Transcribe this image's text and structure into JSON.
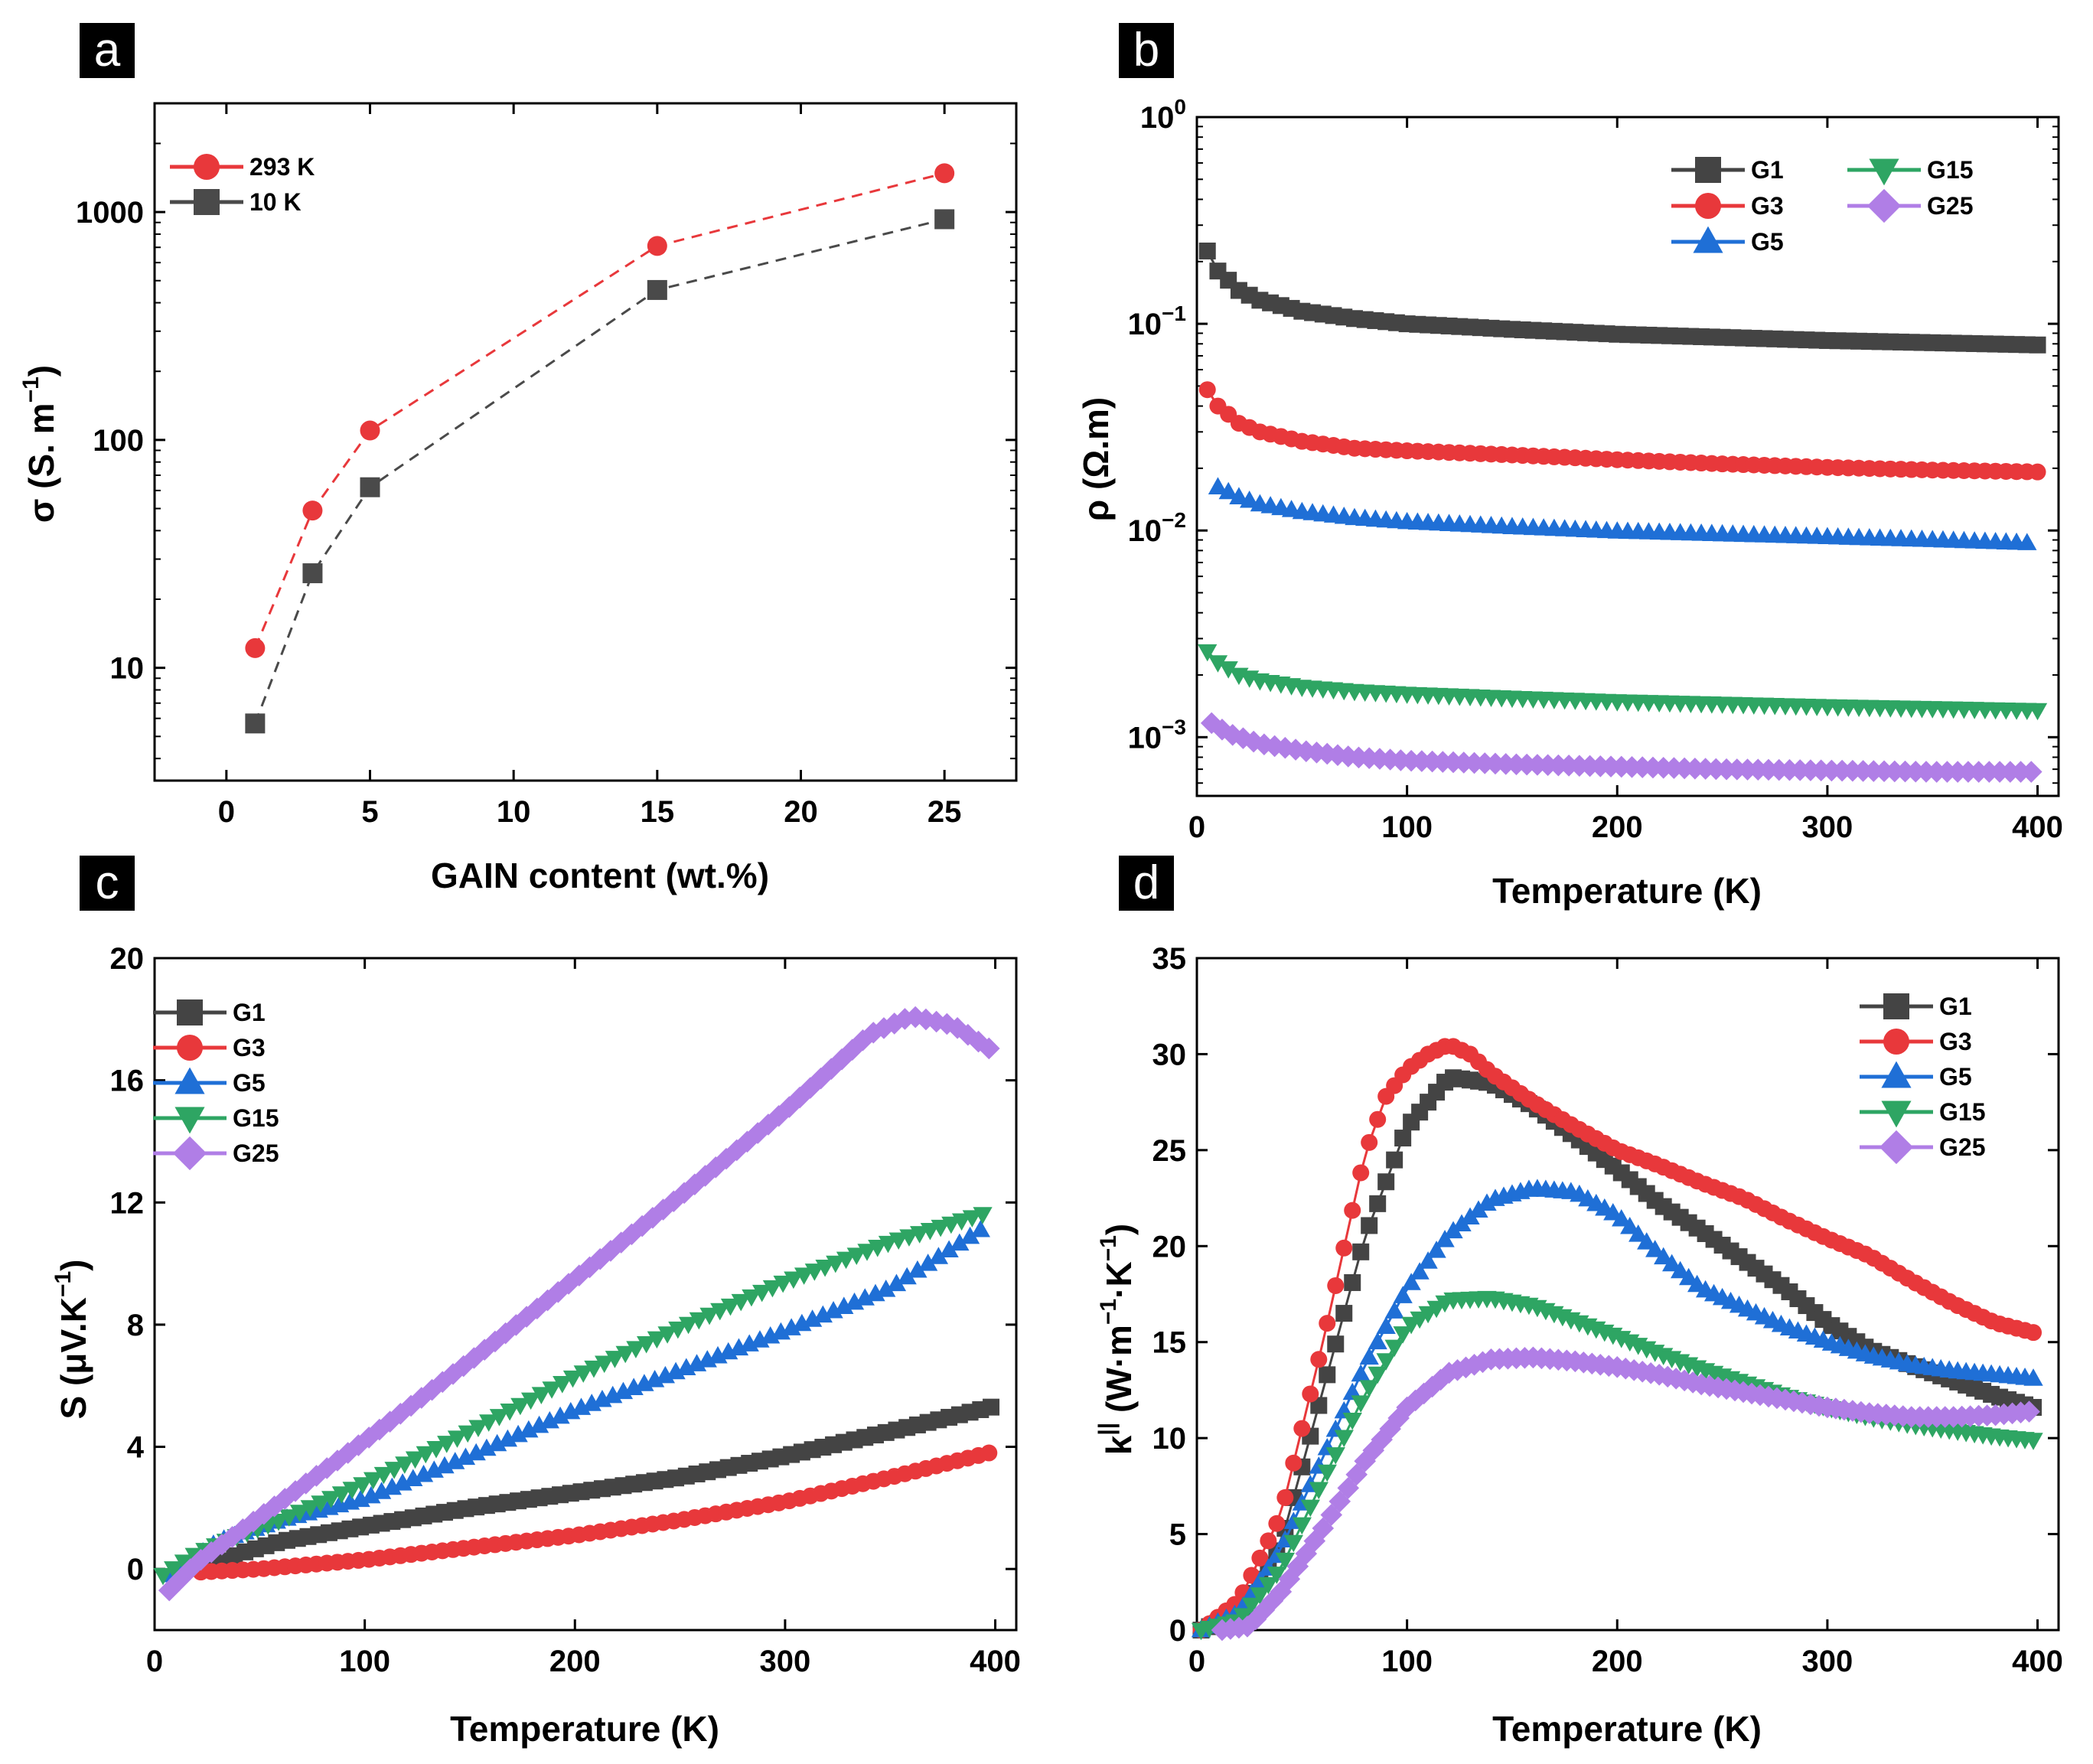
{
  "figure": {
    "colors": {
      "G1": "#444444",
      "G3": "#e8383b",
      "G5": "#1f6fd6",
      "G15": "#2ea563",
      "G25": "#b07ee6",
      "293K": "#e8383b",
      "10K": "#4a4a4a"
    }
  },
  "chart_data": [
    {
      "panel": "a",
      "type": "scatter",
      "xlabel": "GAIN content (wt.%)",
      "ylabel": "σ (S. m",
      "ylabel_sup": "−1",
      "ylabel_close": ")",
      "yscale": "log",
      "xlim": [
        -2.5,
        27.5
      ],
      "ylim": [
        3.2,
        3000
      ],
      "xticks": [
        0,
        5,
        10,
        15,
        20,
        25
      ],
      "yticks": [
        {
          "v": 10,
          "label": "10"
        },
        {
          "v": 100,
          "label": "100"
        },
        {
          "v": 1000,
          "label": "1000"
        }
      ],
      "legend": "top-left",
      "series": [
        {
          "name": "293 K",
          "color": "#e8383b",
          "marker": "circle",
          "x": [
            1,
            3,
            5,
            15,
            25
          ],
          "y": [
            12.2,
            49,
            110,
            710,
            1480
          ]
        },
        {
          "name": "10 K",
          "color": "#4a4a4a",
          "marker": "square",
          "x": [
            1,
            3,
            5,
            15,
            25
          ],
          "y": [
            5.7,
            26,
            62,
            455,
            930
          ]
        }
      ]
    },
    {
      "panel": "b",
      "type": "line",
      "xlabel": "Temperature (K)",
      "ylabel": "ρ (Ω.m)",
      "yscale": "log",
      "xlim": [
        0,
        410
      ],
      "ylim": [
        0.00052,
        1.0
      ],
      "xticks": [
        0,
        100,
        200,
        300,
        400
      ],
      "yticks": [
        {
          "v": 1,
          "base": "10",
          "exp": "0"
        },
        {
          "v": 0.1,
          "base": "10",
          "exp": "−1"
        },
        {
          "v": 0.01,
          "base": "10",
          "exp": "−2"
        },
        {
          "v": 0.001,
          "base": "10",
          "exp": "−3"
        }
      ],
      "legend": "top-right",
      "series": [
        {
          "name": "G1",
          "color": "#444444",
          "marker": "square",
          "x": [
            5,
            10,
            20,
            30,
            50,
            75,
            100,
            150,
            200,
            250,
            300,
            350,
            400
          ],
          "y": [
            0.225,
            0.18,
            0.145,
            0.13,
            0.115,
            0.106,
            0.1,
            0.094,
            0.089,
            0.086,
            0.083,
            0.081,
            0.079
          ]
        },
        {
          "name": "G3",
          "color": "#e8383b",
          "marker": "circle",
          "x": [
            5,
            10,
            20,
            30,
            50,
            75,
            100,
            150,
            200,
            250,
            300,
            350,
            400
          ],
          "y": [
            0.048,
            0.04,
            0.033,
            0.03,
            0.027,
            0.025,
            0.0243,
            0.0232,
            0.022,
            0.021,
            0.0202,
            0.0196,
            0.0192
          ]
        },
        {
          "name": "G5",
          "color": "#1f6fd6",
          "marker": "triangle",
          "x": [
            10,
            20,
            30,
            50,
            75,
            100,
            150,
            200,
            250,
            300,
            350,
            395
          ],
          "y": [
            0.0162,
            0.0145,
            0.0134,
            0.0123,
            0.0115,
            0.011,
            0.0104,
            0.0099,
            0.0096,
            0.0093,
            0.009,
            0.0087
          ]
        },
        {
          "name": "G15",
          "color": "#2ea563",
          "marker": "triangle-down",
          "x": [
            5,
            10,
            20,
            30,
            50,
            75,
            100,
            150,
            200,
            250,
            300,
            350,
            400
          ],
          "y": [
            0.0026,
            0.0023,
            0.002,
            0.00188,
            0.00175,
            0.00167,
            0.00162,
            0.00155,
            0.00149,
            0.00145,
            0.00141,
            0.00138,
            0.00135
          ]
        },
        {
          "name": "G25",
          "color": "#b07ee6",
          "marker": "diamond",
          "x": [
            7,
            15,
            30,
            50,
            75,
            100,
            150,
            200,
            250,
            300,
            350,
            400
          ],
          "y": [
            0.00117,
            0.00104,
            0.00093,
            0.00086,
            0.0008,
            0.00077,
            0.00074,
            0.00072,
            0.0007,
            0.00069,
            0.00068,
            0.00068
          ]
        }
      ]
    },
    {
      "panel": "c",
      "type": "line",
      "xlabel": "Temperature (K)",
      "ylabel": "S (μV.K",
      "ylabel_sup": "−1",
      "ylabel_close": ")",
      "xlim": [
        0,
        410
      ],
      "ylim": [
        -2,
        20
      ],
      "xticks": [
        0,
        100,
        200,
        300,
        400
      ],
      "yticks": [
        {
          "v": 0,
          "label": "0"
        },
        {
          "v": 4,
          "label": "4"
        },
        {
          "v": 8,
          "label": "8"
        },
        {
          "v": 12,
          "label": "12"
        },
        {
          "v": 16,
          "label": "16"
        },
        {
          "v": 20,
          "label": "20"
        }
      ],
      "legend": "top-left",
      "series": [
        {
          "name": "G1",
          "color": "#444444",
          "marker": "square",
          "x": [
            28,
            40,
            60,
            80,
            100,
            150,
            200,
            250,
            300,
            350,
            398
          ],
          "y": [
            0.1,
            0.5,
            0.9,
            1.15,
            1.4,
            2.0,
            2.5,
            3.0,
            3.7,
            4.5,
            5.3
          ]
        },
        {
          "name": "G3",
          "color": "#e8383b",
          "marker": "circle",
          "x": [
            22,
            50,
            100,
            150,
            200,
            250,
            300,
            350,
            397
          ],
          "y": [
            -0.1,
            0.0,
            0.3,
            0.7,
            1.1,
            1.6,
            2.2,
            3.0,
            3.8
          ]
        },
        {
          "name": "G5",
          "color": "#1f6fd6",
          "marker": "triangle",
          "x": [
            8,
            30,
            60,
            100,
            150,
            200,
            250,
            300,
            350,
            393
          ],
          "y": [
            -0.2,
            0.9,
            1.6,
            2.3,
            3.7,
            5.2,
            6.5,
            7.8,
            9.2,
            11.1
          ]
        },
        {
          "name": "G15",
          "color": "#2ea563",
          "marker": "triangle-down",
          "x": [
            4,
            20,
            40,
            60,
            100,
            150,
            200,
            250,
            300,
            350,
            398
          ],
          "y": [
            -0.2,
            0.5,
            1.1,
            1.6,
            2.8,
            4.5,
            6.3,
            7.9,
            9.4,
            10.7,
            11.7
          ]
        },
        {
          "name": "G25",
          "color": "#b07ee6",
          "marker": "diamond",
          "x": [
            7,
            20,
            40,
            60,
            100,
            150,
            200,
            250,
            300,
            340,
            360,
            380,
            398
          ],
          "y": [
            -0.7,
            0.2,
            1.2,
            2.2,
            4.2,
            6.8,
            9.5,
            12.2,
            15.0,
            17.5,
            18.1,
            17.8,
            17.0
          ]
        }
      ]
    },
    {
      "panel": "d",
      "type": "line",
      "xlabel": "Temperature (K)",
      "ylabel": "k",
      "ylabel_sup1": "||",
      "ylabel_mid": " (W·m",
      "ylabel_sup2": "−1",
      "ylabel_mid2": "·K",
      "ylabel_sup3": "−1",
      "ylabel_close": ")",
      "xlim": [
        0,
        410
      ],
      "ylim": [
        0,
        35
      ],
      "xticks": [
        0,
        100,
        200,
        300,
        400
      ],
      "yticks": [
        {
          "v": 0,
          "label": "0"
        },
        {
          "v": 5,
          "label": "5"
        },
        {
          "v": 10,
          "label": "10"
        },
        {
          "v": 15,
          "label": "15"
        },
        {
          "v": 20,
          "label": "20"
        },
        {
          "v": 25,
          "label": "25"
        },
        {
          "v": 30,
          "label": "30"
        },
        {
          "v": 35,
          "label": "35"
        }
      ],
      "legend": "top-right",
      "series": [
        {
          "name": "G1",
          "color": "#444444",
          "marker": "square",
          "x": [
            2,
            20,
            40,
            60,
            80,
            100,
            120,
            140,
            160,
            180,
            200,
            220,
            240,
            260,
            280,
            300,
            320,
            340,
            360,
            380,
            398
          ],
          "y": [
            0,
            0.8,
            4.5,
            12.5,
            20.5,
            26.2,
            28.8,
            28.5,
            27.3,
            25.7,
            24.0,
            22.2,
            20.8,
            19.3,
            17.8,
            16.0,
            14.6,
            13.8,
            13.0,
            12.2,
            11.6
          ]
        },
        {
          "name": "G3",
          "color": "#e8383b",
          "marker": "circle",
          "x": [
            2,
            20,
            40,
            60,
            80,
            90,
            100,
            110,
            120,
            130,
            140,
            160,
            180,
            200,
            220,
            240,
            260,
            280,
            300,
            320,
            340,
            360,
            380,
            398
          ],
          "y": [
            0,
            1.5,
            6.0,
            15.0,
            24.8,
            27.8,
            29.2,
            30.0,
            30.5,
            30.0,
            29.0,
            27.5,
            26.2,
            25.0,
            24.2,
            23.3,
            22.5,
            21.4,
            20.4,
            19.5,
            18.2,
            17.0,
            16.0,
            15.5
          ]
        },
        {
          "name": "G5",
          "color": "#1f6fd6",
          "marker": "triangle",
          "x": [
            2,
            20,
            40,
            60,
            80,
            100,
            120,
            140,
            160,
            180,
            200,
            220,
            240,
            260,
            280,
            300,
            320,
            340,
            360,
            380,
            398
          ],
          "y": [
            0,
            0.9,
            4.2,
            9.0,
            13.8,
            17.8,
            20.6,
            22.4,
            23.0,
            22.8,
            21.6,
            19.6,
            17.8,
            16.8,
            15.8,
            15.0,
            14.3,
            13.8,
            13.5,
            13.3,
            13.1
          ]
        },
        {
          "name": "G15",
          "color": "#2ea563",
          "marker": "triangle-down",
          "x": [
            2,
            20,
            40,
            60,
            80,
            100,
            120,
            140,
            160,
            180,
            200,
            220,
            240,
            260,
            280,
            300,
            320,
            340,
            360,
            380,
            398
          ],
          "y": [
            0,
            0.5,
            3.2,
            7.8,
            12.3,
            15.8,
            17.2,
            17.3,
            16.9,
            16.1,
            15.3,
            14.4,
            13.6,
            12.9,
            12.2,
            11.6,
            11.1,
            10.7,
            10.4,
            10.1,
            9.9
          ]
        },
        {
          "name": "G25",
          "color": "#b07ee6",
          "marker": "diamond",
          "x": [
            12,
            25,
            40,
            60,
            80,
            100,
            120,
            140,
            160,
            180,
            200,
            220,
            240,
            260,
            280,
            300,
            320,
            340,
            360,
            380,
            398
          ],
          "y": [
            0,
            0.2,
            2.0,
            5.3,
            8.8,
            11.6,
            13.4,
            14.1,
            14.2,
            14.0,
            13.7,
            13.3,
            12.8,
            12.4,
            12.0,
            11.6,
            11.3,
            11.1,
            11.1,
            11.2,
            11.4
          ]
        }
      ]
    }
  ]
}
